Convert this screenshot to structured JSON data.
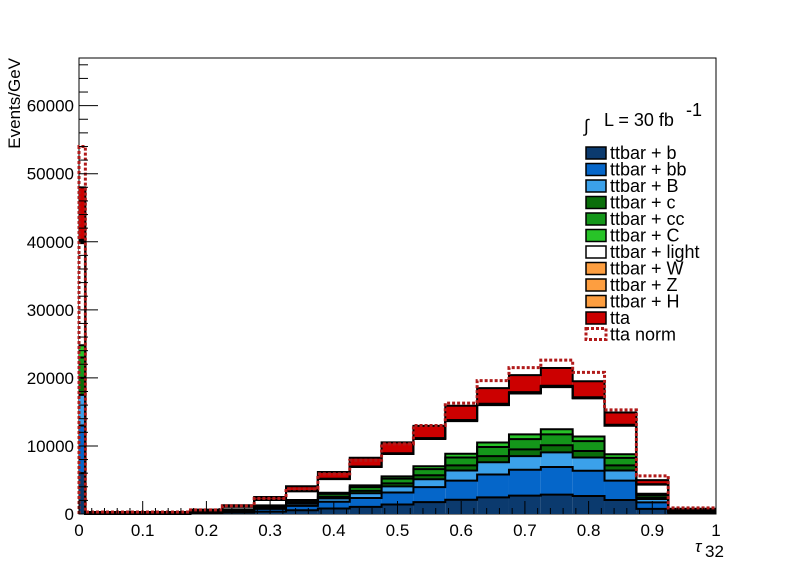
{
  "chart_data": {
    "type": "area",
    "stacked": true,
    "xlabel": "τ",
    "xlabel_sub": "32",
    "ylabel": "Events/GeV",
    "xlim": [
      0,
      1
    ],
    "ylim": [
      0,
      67000
    ],
    "x_ticks": [
      "0",
      "0.1",
      "0.2",
      "0.3",
      "0.4",
      "0.5",
      "0.6",
      "0.7",
      "0.8",
      "0.9",
      "1"
    ],
    "y_ticks": [
      "0",
      "10000",
      "20000",
      "30000",
      "40000",
      "50000",
      "60000"
    ],
    "luminosity": {
      "integral_symbol": "∫",
      "text": "L = 30 fb",
      "superscript": "-1"
    },
    "grid": false,
    "legend_position": "top-right",
    "x": [
      0.005,
      0.1,
      0.2,
      0.25,
      0.3,
      0.35,
      0.4,
      0.45,
      0.5,
      0.55,
      0.6,
      0.65,
      0.7,
      0.75,
      0.8,
      0.85,
      0.9,
      0.95
    ],
    "series": [
      {
        "name": "ttbar + b",
        "color": "#0b3a6e",
        "values": [
          6000,
          0,
          100,
          200,
          350,
          550,
          800,
          1050,
          1400,
          1750,
          2100,
          2450,
          2700,
          2850,
          2650,
          2050,
          750,
          120
        ]
      },
      {
        "name": "ttbar + bb",
        "color": "#0566c9",
        "values": [
          7000,
          0,
          100,
          200,
          400,
          650,
          1000,
          1300,
          1750,
          2200,
          2800,
          3350,
          3800,
          4050,
          3700,
          2850,
          950,
          150
        ]
      },
      {
        "name": "ttbar + B",
        "color": "#3ba1ea",
        "values": [
          4500,
          0,
          50,
          100,
          200,
          300,
          500,
          700,
          900,
          1150,
          1500,
          1800,
          2000,
          2150,
          1950,
          1500,
          500,
          80
        ]
      },
      {
        "name": "ttbar + c",
        "color": "#0a6e0a",
        "values": [
          2500,
          0,
          30,
          60,
          100,
          180,
          250,
          350,
          450,
          600,
          750,
          900,
          1000,
          1050,
          950,
          750,
          250,
          40
        ]
      },
      {
        "name": "ttbar + cc",
        "color": "#14961a",
        "values": [
          3000,
          0,
          40,
          80,
          150,
          250,
          400,
          550,
          700,
          900,
          1150,
          1350,
          1500,
          1600,
          1450,
          1100,
          350,
          60
        ]
      },
      {
        "name": "ttbar + C",
        "color": "#28c328",
        "values": [
          1800,
          0,
          20,
          40,
          70,
          120,
          180,
          250,
          320,
          420,
          550,
          650,
          700,
          750,
          680,
          520,
          170,
          30
        ]
      },
      {
        "name": "ttbar + light",
        "color": "#ffffff",
        "values": [
          15000,
          0,
          200,
          400,
          800,
          1300,
          2000,
          2700,
          3300,
          4000,
          4800,
          5500,
          6000,
          6200,
          5600,
          4200,
          1350,
          200
        ]
      },
      {
        "name": "ttbar + W",
        "color": "#fd9e40",
        "values": [
          200,
          0,
          0,
          0,
          10,
          10,
          20,
          30,
          40,
          50,
          60,
          70,
          80,
          80,
          70,
          60,
          20,
          0
        ]
      },
      {
        "name": "ttbar + Z",
        "color": "#fd9e40",
        "values": [
          150,
          0,
          0,
          0,
          5,
          10,
          15,
          20,
          30,
          40,
          50,
          60,
          60,
          60,
          50,
          40,
          15,
          0
        ]
      },
      {
        "name": "ttbar + H",
        "color": "#fd9e40",
        "values": [
          150,
          0,
          0,
          0,
          5,
          10,
          15,
          20,
          30,
          40,
          50,
          60,
          60,
          60,
          50,
          40,
          15,
          0
        ]
      },
      {
        "name": "tta",
        "color": "#cc0000",
        "values": [
          7700,
          300,
          100,
          200,
          400,
          700,
          1000,
          1300,
          1600,
          1800,
          2100,
          2300,
          2500,
          2600,
          2350,
          1800,
          600,
          100
        ]
      }
    ],
    "overlay": {
      "name": "tta norm",
      "color": "#b11a1a",
      "style": "dashed",
      "values": [
        54000,
        300,
        600,
        1200,
        2300,
        3700,
        5900,
        7900,
        10300,
        13000,
        16300,
        19600,
        21500,
        22600,
        20800,
        15300,
        5600,
        900
      ]
    }
  }
}
